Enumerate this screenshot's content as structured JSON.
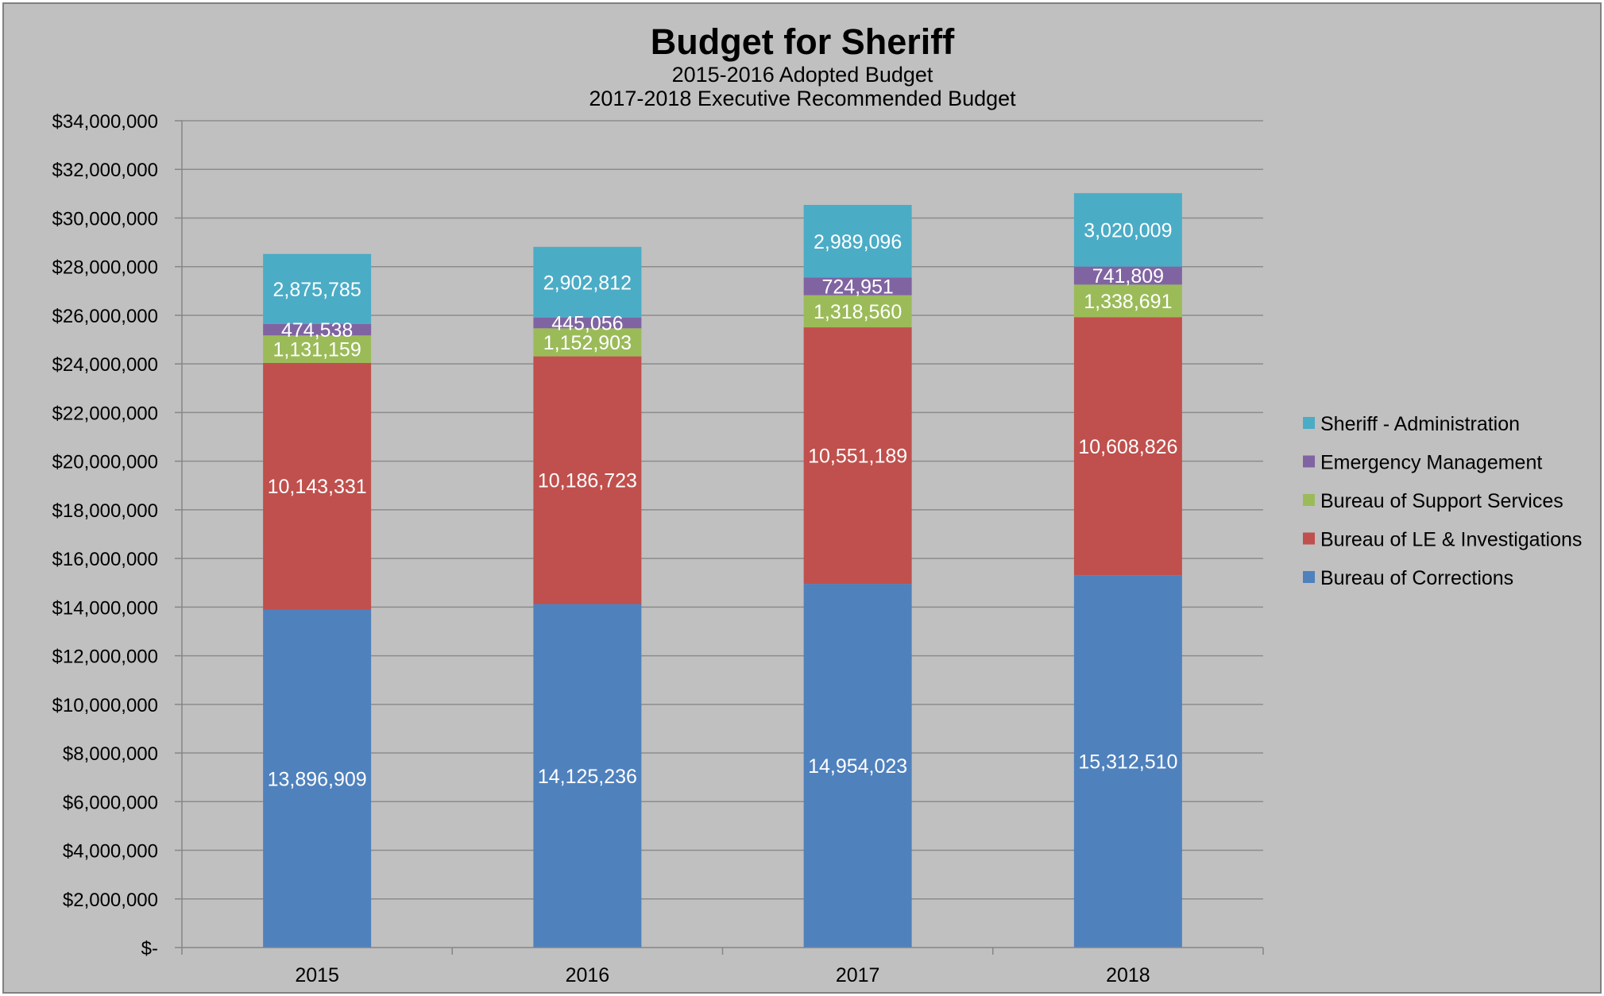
{
  "chart_data": {
    "type": "bar",
    "stacked": true,
    "title": "Budget for Sheriff",
    "subtitle_lines": [
      "2015-2016 Adopted Budget",
      "2017-2018 Executive Recommended Budget"
    ],
    "categories": [
      "2015",
      "2016",
      "2017",
      "2018"
    ],
    "ylim": [
      0,
      34000000
    ],
    "y_ticks": [
      0,
      2000000,
      4000000,
      6000000,
      8000000,
      10000000,
      12000000,
      14000000,
      16000000,
      18000000,
      20000000,
      22000000,
      24000000,
      26000000,
      28000000,
      30000000,
      32000000,
      34000000
    ],
    "y_tick_labels": [
      "$-",
      "$2,000,000",
      "$4,000,000",
      "$6,000,000",
      "$8,000,000",
      "$10,000,000",
      "$12,000,000",
      "$14,000,000",
      "$16,000,000",
      "$18,000,000",
      "$20,000,000",
      "$22,000,000",
      "$24,000,000",
      "$26,000,000",
      "$28,000,000",
      "$30,000,000",
      "$32,000,000",
      "$34,000,000"
    ],
    "grid": true,
    "legend_position": "right",
    "series": [
      {
        "name": "Bureau of Corrections",
        "color": "#4F81BD",
        "values": [
          13896909,
          14125236,
          14954023,
          15312510
        ],
        "labels": [
          "13,896,909",
          "14,125,236",
          "14,954,023",
          "15,312,510"
        ]
      },
      {
        "name": "Bureau of LE & Investigations",
        "color": "#C0504D",
        "values": [
          10143331,
          10186723,
          10551189,
          10608826
        ],
        "labels": [
          "10,143,331",
          "10,186,723",
          "10,551,189",
          "10,608,826"
        ]
      },
      {
        "name": "Bureau of Support Services",
        "color": "#9BBB59",
        "values": [
          1131159,
          1152903,
          1318560,
          1338691
        ],
        "labels": [
          "1,131,159",
          "1,152,903",
          "1,318,560",
          "1,338,691"
        ]
      },
      {
        "name": "Emergency Management",
        "color": "#8064A2",
        "values": [
          474538,
          445056,
          724951,
          741809
        ],
        "labels": [
          "474,538",
          "445,056",
          "724,951",
          "741,809"
        ]
      },
      {
        "name": "Sheriff - Administration",
        "color": "#4BACC6",
        "values": [
          2875785,
          2902812,
          2989096,
          3020009
        ],
        "labels": [
          "2,875,785",
          "2,902,812",
          "2,989,096",
          "3,020,009"
        ]
      }
    ],
    "legend_order": [
      "Sheriff - Administration",
      "Emergency Management",
      "Bureau of Support Services",
      "Bureau of LE & Investigations",
      "Bureau of Corrections"
    ]
  },
  "colors": {
    "background": "#C0C0C0",
    "frame": "#808080",
    "gridline": "#8C8C8C",
    "axis": "#868686"
  }
}
